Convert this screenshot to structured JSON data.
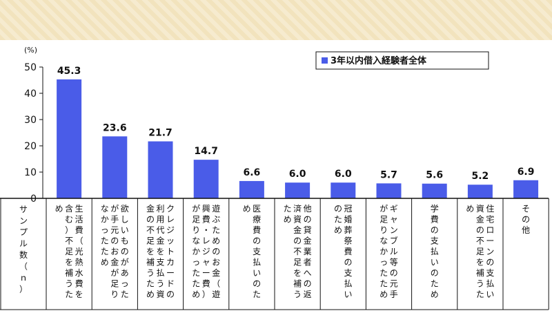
{
  "chart_data": {
    "type": "bar",
    "unit_label": "(%)",
    "ylim": [
      0,
      50
    ],
    "yticks": [
      "0",
      "10",
      "20",
      "30",
      "40",
      "50"
    ],
    "legend": {
      "position": "top-right",
      "label": "3年以内借入経験者全体",
      "color": "#4a5ce8"
    },
    "row_header": "サンプル数（ｎ）",
    "categories": [
      "生活費（光熱水費を含む）不足を補うため",
      "欲しいものがあったが手元のお金が足りなかったため",
      "クレジットカードの利用代金を支払う資金の不足を補うため",
      "遊ぶためのお金（遊興費・レジャー費）が足りなかったため",
      "医療費の支払いのため",
      "他の貸金業者への返済資金の不足を補うため",
      "冠婚葬祭費の支払いのため",
      "ギャンブル等の元手が足りなかったため",
      "学費の支払いのため",
      "住宅ローンの支払い資金の不足を補うため",
      "その他"
    ],
    "values": [
      45.3,
      23.6,
      21.7,
      14.7,
      6.6,
      6.0,
      6.0,
      5.7,
      5.6,
      5.2,
      6.9
    ],
    "value_labels": [
      "45.3",
      "23.6",
      "21.7",
      "14.7",
      "6.6",
      "6.0",
      "6.0",
      "5.7",
      "5.6",
      "5.2",
      "6.9"
    ],
    "bar_color": "#4a5ce8"
  }
}
